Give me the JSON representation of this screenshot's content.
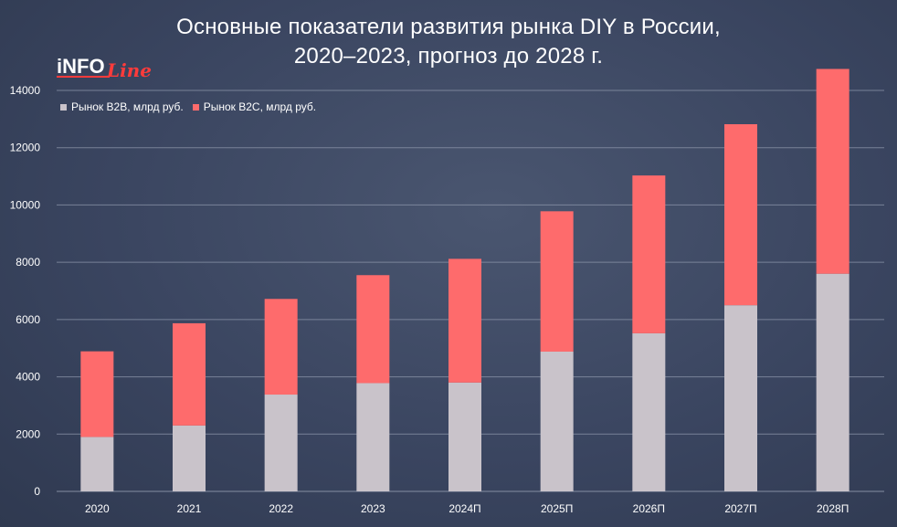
{
  "title_line1": "Основные показатели развития рынка DIY в России,",
  "title_line2": "2020–2023, прогноз до 2028 г.",
  "logo": {
    "text_main": "iNFO",
    "text_script": "Line"
  },
  "colors": {
    "b2b": "#c9c3ca",
    "b2c": "#fe6b6c",
    "grid": "#8e97ab",
    "text": "#ffffff"
  },
  "chart_data": {
    "type": "bar",
    "stacked": true,
    "title": "Основные показатели развития рынка DIY в России, 2020–2023, прогноз до 2028 г.",
    "categories": [
      "2020",
      "2021",
      "2022",
      "2023",
      "2024П",
      "2025П",
      "2026П",
      "2027П",
      "2028П"
    ],
    "series": [
      {
        "name": "Рынок B2B, млрд руб.",
        "values": [
          1900,
          2300,
          3380,
          3780,
          3800,
          4880,
          5520,
          6500,
          7600
        ]
      },
      {
        "name": "Рынок B2C, млрд руб.",
        "values": [
          2990,
          3570,
          3340,
          3770,
          4320,
          4900,
          5510,
          6320,
          7150
        ]
      }
    ],
    "ylim": [
      0,
      14000
    ],
    "yticks": [
      "0",
      "2000",
      "4000",
      "6000",
      "8000",
      "10000",
      "12000",
      "14000"
    ],
    "grid": true,
    "legend_position": "top-left"
  }
}
